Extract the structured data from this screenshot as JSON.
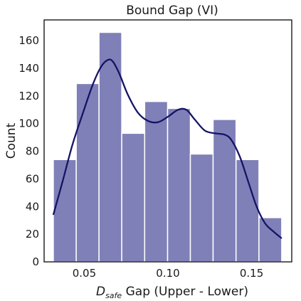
{
  "chart_data": {
    "type": "bar",
    "title": "Bound Gap (VI)",
    "xlabel": {
      "symbol": "D",
      "subscript": "safe",
      "rest": " Gap (Upper - Lower)"
    },
    "ylabel": "Count",
    "xlim": [
      0.026,
      0.174
    ],
    "ylim": [
      0,
      175
    ],
    "xticks": [
      0.05,
      0.1,
      0.15
    ],
    "xtick_labels": [
      "0.05",
      "0.10",
      "0.15"
    ],
    "yticks": [
      0,
      20,
      40,
      60,
      80,
      100,
      120,
      140,
      160
    ],
    "ytick_labels": [
      "0",
      "20",
      "40",
      "60",
      "80",
      "100",
      "120",
      "140",
      "160"
    ],
    "bins": [
      {
        "x0": 0.0315,
        "x1": 0.0452,
        "count": 74
      },
      {
        "x0": 0.0452,
        "x1": 0.0588,
        "count": 129
      },
      {
        "x0": 0.0588,
        "x1": 0.0724,
        "count": 166
      },
      {
        "x0": 0.0724,
        "x1": 0.0861,
        "count": 93
      },
      {
        "x0": 0.0861,
        "x1": 0.0998,
        "count": 116
      },
      {
        "x0": 0.0998,
        "x1": 0.1134,
        "count": 111
      },
      {
        "x0": 0.1134,
        "x1": 0.127,
        "count": 78
      },
      {
        "x0": 0.127,
        "x1": 0.1407,
        "count": 103
      },
      {
        "x0": 0.1407,
        "x1": 0.1544,
        "count": 74
      },
      {
        "x0": 0.1544,
        "x1": 0.168,
        "count": 32
      }
    ],
    "kde": {
      "x": [
        0.0315,
        0.037,
        0.043,
        0.049,
        0.055,
        0.06,
        0.064,
        0.067,
        0.071,
        0.076,
        0.082,
        0.088,
        0.094,
        0.1,
        0.106,
        0.111,
        0.116,
        0.122,
        0.128,
        0.134,
        0.138,
        0.143,
        0.148,
        0.153,
        0.158,
        0.163,
        0.168
      ],
      "y": [
        34,
        58,
        85,
        107,
        128,
        141,
        146,
        145,
        136,
        121,
        108,
        102,
        101,
        105,
        110,
        110,
        103,
        95,
        93,
        92,
        88,
        76,
        58,
        40,
        28,
        22,
        17
      ]
    },
    "grid": false,
    "colors": {
      "bar_fill": "#8080b8",
      "bar_edge": "#ffffff",
      "kde_line": "#141466",
      "axis": "#1a1a1a"
    }
  }
}
